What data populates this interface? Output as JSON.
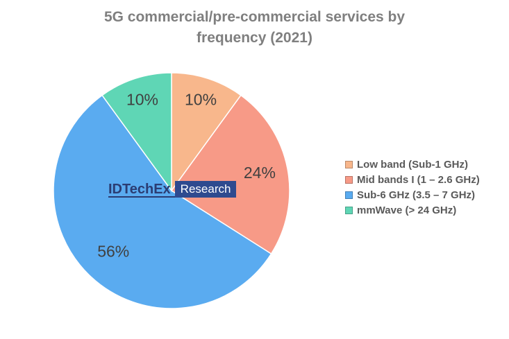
{
  "title": {
    "line1": "5G commercial/pre-commercial services by",
    "line2": "frequency (2021)"
  },
  "watermark": {
    "brand": "IDTechEx",
    "label": "Research"
  },
  "chart_data": {
    "type": "pie",
    "title": "5G commercial/pre-commercial services by frequency (2021)",
    "slices": [
      {
        "label": "Low band (Sub-1 GHz)",
        "value": 10,
        "display": "10%",
        "color": "#f8b78c"
      },
      {
        "label": "Mid bands I (1 – 2.6 GHz)",
        "value": 24,
        "display": "24%",
        "color": "#f79a87"
      },
      {
        "label": "Sub-6 GHz (3.5  –  7 GHz)",
        "value": 56,
        "display": "56%",
        "color": "#5aabf0"
      },
      {
        "label": "mmWave (> 24 GHz)",
        "value": 10,
        "display": "10%",
        "color": "#5fd6b5"
      }
    ],
    "legend_position": "right",
    "start_angle": "12 o'clock, clockwise"
  }
}
